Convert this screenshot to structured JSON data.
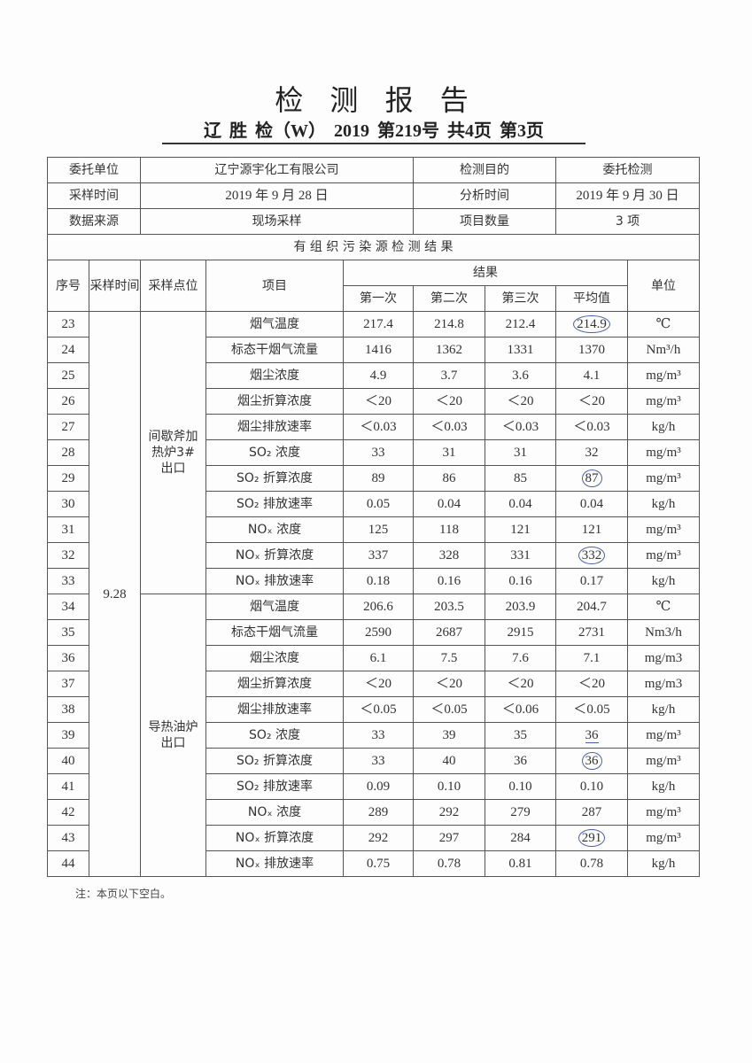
{
  "header": {
    "title": "检 测 报 告",
    "subtitle": "辽  胜  检（W） 2019  第219号 共4页 第3页"
  },
  "info": [
    {
      "label1": "委托单位",
      "value1": "辽宁源宇化工有限公司",
      "label2": "检测目的",
      "value2": "委托检测"
    },
    {
      "label1": "采样时间",
      "value1": "2019 年 9 月 28 日",
      "label2": "分析时间",
      "value2": "2019 年 9 月 30 日"
    },
    {
      "label1": "数据来源",
      "value1": "现场采样",
      "label2": "项目数量",
      "value2": "3 项"
    }
  ],
  "section_title": "有 组 织 污 染 源 检 测 结 果",
  "columns": {
    "seq": "序号",
    "time": "采样时间",
    "location": "采样点位",
    "item": "项目",
    "results": "结果",
    "r1": "第一次",
    "r2": "第二次",
    "r3": "第三次",
    "avg": "平均值",
    "unit": "单位"
  },
  "sample_time": "9.28",
  "groups": [
    {
      "location": "间歇斧加热炉3#出口",
      "rows": [
        {
          "seq": "23",
          "item": "烟气温度",
          "r1": "217.4",
          "r2": "214.8",
          "r3": "212.4",
          "avg": "214.9",
          "unit": "℃",
          "mark": "circle"
        },
        {
          "seq": "24",
          "item": "标态干烟气流量",
          "r1": "1416",
          "r2": "1362",
          "r3": "1331",
          "avg": "1370",
          "unit": "Nm³/h"
        },
        {
          "seq": "25",
          "item": "烟尘浓度",
          "r1": "4.9",
          "r2": "3.7",
          "r3": "3.6",
          "avg": "4.1",
          "unit": "mg/m³"
        },
        {
          "seq": "26",
          "item": "烟尘折算浓度",
          "r1": "＜20",
          "r2": "＜20",
          "r3": "＜20",
          "avg": "＜20",
          "unit": "mg/m³"
        },
        {
          "seq": "27",
          "item": "烟尘排放速率",
          "r1": "＜0.03",
          "r2": "＜0.03",
          "r3": "＜0.03",
          "avg": "＜0.03",
          "unit": "kg/h"
        },
        {
          "seq": "28",
          "item": "SO₂ 浓度",
          "r1": "33",
          "r2": "31",
          "r3": "31",
          "avg": "32",
          "unit": "mg/m³"
        },
        {
          "seq": "29",
          "item": "SO₂ 折算浓度",
          "r1": "89",
          "r2": "86",
          "r3": "85",
          "avg": "87",
          "unit": "mg/m³",
          "mark": "circle"
        },
        {
          "seq": "30",
          "item": "SO₂ 排放速率",
          "r1": "0.05",
          "r2": "0.04",
          "r3": "0.04",
          "avg": "0.04",
          "unit": "kg/h"
        },
        {
          "seq": "31",
          "item": "NOₓ 浓度",
          "r1": "125",
          "r2": "118",
          "r3": "121",
          "avg": "121",
          "unit": "mg/m³"
        },
        {
          "seq": "32",
          "item": "NOₓ 折算浓度",
          "r1": "337",
          "r2": "328",
          "r3": "331",
          "avg": "332",
          "unit": "mg/m³",
          "mark": "circle"
        },
        {
          "seq": "33",
          "item": "NOₓ 排放速率",
          "r1": "0.18",
          "r2": "0.16",
          "r3": "0.16",
          "avg": "0.17",
          "unit": "kg/h"
        }
      ]
    },
    {
      "location": "导热油炉出口",
      "rows": [
        {
          "seq": "34",
          "item": "烟气温度",
          "r1": "206.6",
          "r2": "203.5",
          "r3": "203.9",
          "avg": "204.7",
          "unit": "℃"
        },
        {
          "seq": "35",
          "item": "标态干烟气流量",
          "r1": "2590",
          "r2": "2687",
          "r3": "2915",
          "avg": "2731",
          "unit": "Nm3/h"
        },
        {
          "seq": "36",
          "item": "烟尘浓度",
          "r1": "6.1",
          "r2": "7.5",
          "r3": "7.6",
          "avg": "7.1",
          "unit": "mg/m3"
        },
        {
          "seq": "37",
          "item": "烟尘折算浓度",
          "r1": "＜20",
          "r2": "＜20",
          "r3": "＜20",
          "avg": "＜20",
          "unit": "mg/m3"
        },
        {
          "seq": "38",
          "item": "烟尘排放速率",
          "r1": "＜0.05",
          "r2": "＜0.05",
          "r3": "＜0.06",
          "avg": "＜0.05",
          "unit": "kg/h"
        },
        {
          "seq": "39",
          "item": "SO₂ 浓度",
          "r1": "33",
          "r2": "39",
          "r3": "35",
          "avg": "36",
          "unit": "mg/m³",
          "mark": "underline"
        },
        {
          "seq": "40",
          "item": "SO₂ 折算浓度",
          "r1": "33",
          "r2": "40",
          "r3": "36",
          "avg": "36",
          "unit": "mg/m³",
          "mark": "circle"
        },
        {
          "seq": "41",
          "item": "SO₂ 排放速率",
          "r1": "0.09",
          "r2": "0.10",
          "r3": "0.10",
          "avg": "0.10",
          "unit": "kg/h"
        },
        {
          "seq": "42",
          "item": "NOₓ 浓度",
          "r1": "289",
          "r2": "292",
          "r3": "279",
          "avg": "287",
          "unit": "mg/m³"
        },
        {
          "seq": "43",
          "item": "NOₓ 折算浓度",
          "r1": "292",
          "r2": "297",
          "r3": "284",
          "avg": "291",
          "unit": "mg/m³",
          "mark": "circle"
        },
        {
          "seq": "44",
          "item": "NOₓ 排放速率",
          "r1": "0.75",
          "r2": "0.78",
          "r3": "0.81",
          "avg": "0.78",
          "unit": "kg/h"
        }
      ]
    }
  ],
  "note": "注：本页以下空白。"
}
